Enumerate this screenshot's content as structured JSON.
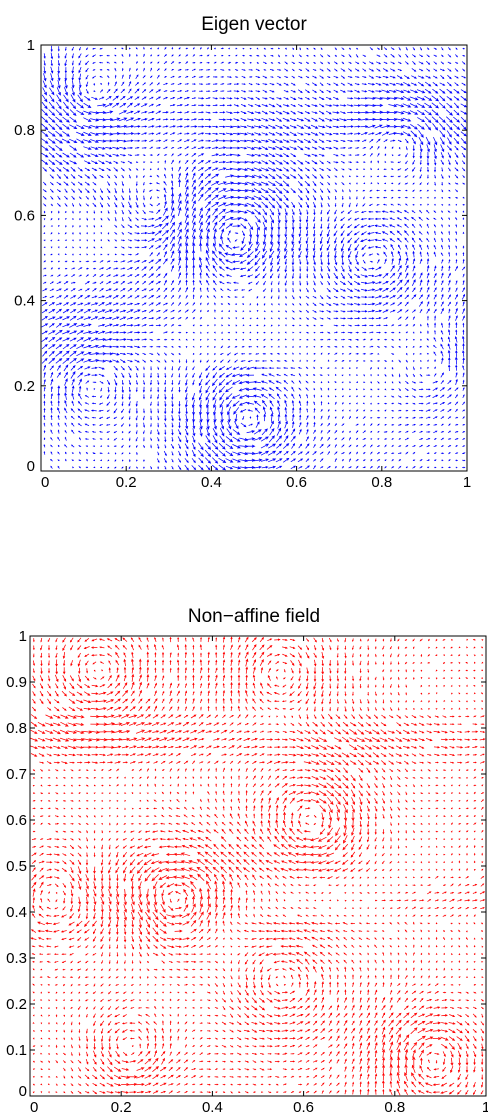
{
  "chart_data": [
    {
      "type": "quiver",
      "title": "Eigen vector",
      "xlabel": "",
      "ylabel": "",
      "xlim": [
        0,
        1
      ],
      "ylim": [
        0,
        1
      ],
      "xticks": [
        "0",
        "0.2",
        "0.4",
        "0.6",
        "0.8",
        "1"
      ],
      "yticks": [
        "0",
        "0.2",
        "0.4",
        "0.6",
        "0.8",
        "1"
      ],
      "color": "#0000ff",
      "grid": false,
      "field": {
        "description_grid": [
          60,
          60
        ],
        "vortices": [
          {
            "x": 0.12,
            "y": 0.88,
            "strength": 0.7
          },
          {
            "x": 0.45,
            "y": 0.55,
            "strength": -1.0
          },
          {
            "x": 0.28,
            "y": 0.62,
            "strength": 0.8
          },
          {
            "x": 0.85,
            "y": 0.78,
            "strength": -0.7
          },
          {
            "x": 0.78,
            "y": 0.5,
            "strength": 0.6
          },
          {
            "x": 0.48,
            "y": 0.12,
            "strength": 1.0
          },
          {
            "x": 0.12,
            "y": 0.2,
            "strength": -0.6
          },
          {
            "x": 0.92,
            "y": 0.25,
            "strength": 0.5
          }
        ],
        "flows": [
          {
            "ymin": 0.62,
            "ymax": 1.0,
            "u": 1.0,
            "v": -0.55
          },
          {
            "ymin": 0.25,
            "ymax": 0.5,
            "u": 1.0,
            "v": 0.35
          }
        ]
      }
    },
    {
      "type": "quiver",
      "title": "Non−affine field",
      "xlabel": "",
      "ylabel": "",
      "xlim": [
        0,
        1
      ],
      "ylim": [
        0,
        1
      ],
      "xticks": [
        "0",
        "0.2",
        "0.4",
        "0.6",
        "0.8",
        "1"
      ],
      "yticks": [
        "0",
        "0.1",
        "0.2",
        "0.3",
        "0.4",
        "0.5",
        "0.6",
        "0.7",
        "0.8",
        "0.9",
        "1"
      ],
      "color": "#ff0000",
      "grid": false,
      "field": {
        "description_grid": [
          60,
          60
        ],
        "vortices": [
          {
            "x": 0.15,
            "y": 0.92,
            "strength": 0.6
          },
          {
            "x": 0.55,
            "y": 0.92,
            "strength": -0.6
          },
          {
            "x": 0.32,
            "y": 0.42,
            "strength": 1.0
          },
          {
            "x": 0.62,
            "y": 0.6,
            "strength": -0.8
          },
          {
            "x": 0.05,
            "y": 0.45,
            "strength": -0.7
          },
          {
            "x": 0.22,
            "y": 0.1,
            "strength": 0.7
          },
          {
            "x": 0.88,
            "y": 0.08,
            "strength": -0.8
          },
          {
            "x": 0.55,
            "y": 0.25,
            "strength": 0.6
          }
        ],
        "flows": [
          {
            "ymin": 0.72,
            "ymax": 0.84,
            "u": 1.0,
            "v": -0.2
          },
          {
            "ymin": 0.38,
            "ymax": 0.48,
            "u": 1.0,
            "v": 0.1
          }
        ]
      }
    }
  ]
}
